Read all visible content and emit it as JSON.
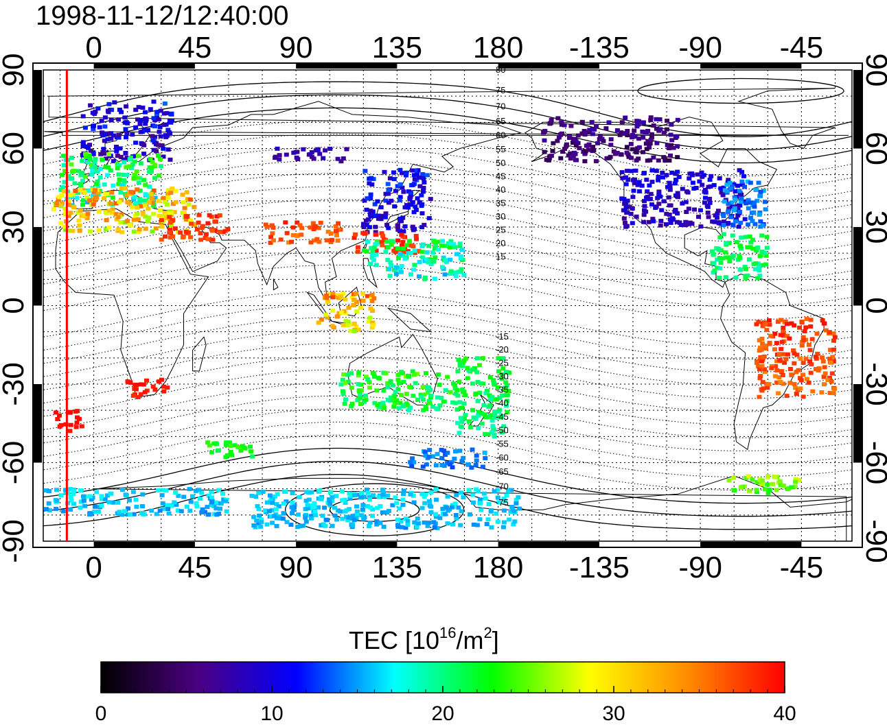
{
  "title": "1998-11-12/12:40:00",
  "map": {
    "lon_range": [
      -22.5,
      337.5
    ],
    "lat_range": [
      -90,
      90
    ],
    "lon_ticks": [
      0,
      45,
      90,
      135,
      180,
      225,
      270,
      315
    ],
    "lon_tick_labels": [
      "0",
      "45",
      "90",
      "135",
      "180",
      "-135",
      "-90",
      "-45"
    ],
    "lat_ticks": [
      90,
      60,
      30,
      0,
      -30,
      -60,
      -90
    ],
    "lat_tick_labels": [
      "90",
      "60",
      "30",
      "0",
      "-30",
      "-60",
      "-90"
    ],
    "grid_lon_step": 15,
    "grid_lat_step": 10,
    "marker_line_lon": -12,
    "marker_line_color": "#ff0000",
    "mlat_labels_north": [
      "80",
      "75",
      "70",
      "65",
      "60",
      "55",
      "50",
      "45",
      "40",
      "35",
      "30",
      "25",
      "20",
      "15"
    ],
    "mlat_labels_south": [
      "-15",
      "-20",
      "-25",
      "-30",
      "-35",
      "-40",
      "-45",
      "-50",
      "-55",
      "-60",
      "-65",
      "-70",
      "-75"
    ]
  },
  "colorbar": {
    "label": "TEC  [10",
    "label_exp": "16",
    "label_mid": "/m",
    "label_sq": "2",
    "label_end": "]",
    "min": 0,
    "max": 40,
    "ticks": [
      0,
      10,
      20,
      30,
      40
    ],
    "tick_labels": [
      "0",
      "10",
      "20",
      "30",
      "40"
    ],
    "stops": [
      "#000000",
      "#4b0082",
      "#0000ff",
      "#00ffff",
      "#00ff00",
      "#ffff00",
      "#ff8c00",
      "#ff0000"
    ]
  },
  "chart_data": {
    "type": "scatter",
    "x_name": "longitude",
    "y_name": "latitude",
    "value_name": "TEC",
    "regions": [
      {
        "lon": [
          -5,
          35
        ],
        "lat": [
          55,
          78
        ],
        "tec": [
          5,
          14
        ]
      },
      {
        "lon": [
          -15,
          30
        ],
        "lat": [
          38,
          58
        ],
        "tec": [
          15,
          26
        ]
      },
      {
        "lon": [
          -18,
          45
        ],
        "lat": [
          28,
          45
        ],
        "tec": [
          24,
          38
        ]
      },
      {
        "lon": [
          30,
          60
        ],
        "lat": [
          25,
          35
        ],
        "tec": [
          36,
          40
        ]
      },
      {
        "lon": [
          75,
          110
        ],
        "lat": [
          24,
          32
        ],
        "tec": [
          34,
          40
        ]
      },
      {
        "lon": [
          80,
          115
        ],
        "lat": [
          55,
          60
        ],
        "tec": [
          6,
          9
        ]
      },
      {
        "lon": [
          120,
          150
        ],
        "lat": [
          28,
          52
        ],
        "tec": [
          6,
          14
        ]
      },
      {
        "lon": [
          115,
          145
        ],
        "lat": [
          20,
          28
        ],
        "tec": [
          36,
          40
        ]
      },
      {
        "lon": [
          120,
          165
        ],
        "lat": [
          10,
          25
        ],
        "tec": [
          14,
          24
        ]
      },
      {
        "lon": [
          100,
          125
        ],
        "lat": [
          -10,
          5
        ],
        "tec": [
          25,
          38
        ]
      },
      {
        "lon": [
          110,
          160
        ],
        "lat": [
          -40,
          -25
        ],
        "tec": [
          18,
          26
        ]
      },
      {
        "lon": [
          160,
          185
        ],
        "lat": [
          -50,
          -20
        ],
        "tec": [
          18,
          24
        ]
      },
      {
        "lon": [
          140,
          175
        ],
        "lat": [
          -62,
          -55
        ],
        "tec": [
          12,
          16
        ]
      },
      {
        "lon": [
          200,
          260
        ],
        "lat": [
          55,
          72
        ],
        "tec": [
          3,
          8
        ]
      },
      {
        "lon": [
          235,
          290
        ],
        "lat": [
          30,
          52
        ],
        "tec": [
          6,
          12
        ]
      },
      {
        "lon": [
          280,
          300
        ],
        "lat": [
          30,
          48
        ],
        "tec": [
          12,
          16
        ]
      },
      {
        "lon": [
          275,
          300
        ],
        "lat": [
          10,
          28
        ],
        "tec": [
          18,
          24
        ]
      },
      {
        "lon": [
          295,
          330
        ],
        "lat": [
          -35,
          -5
        ],
        "tec": [
          34,
          40
        ]
      },
      {
        "lon": [
          282,
          315
        ],
        "lat": [
          -72,
          -65
        ],
        "tec": [
          22,
          28
        ]
      },
      {
        "lon": [
          -22,
          60
        ],
        "lat": [
          -80,
          -70
        ],
        "tec": [
          14,
          18
        ]
      },
      {
        "lon": [
          70,
          190
        ],
        "lat": [
          -85,
          -70
        ],
        "tec": [
          14,
          18
        ]
      },
      {
        "lon": [
          15,
          35
        ],
        "lat": [
          -35,
          -28
        ],
        "tec": [
          38,
          40
        ]
      },
      {
        "lon": [
          -18,
          -5
        ],
        "lat": [
          -48,
          -40
        ],
        "tec": [
          39,
          40
        ]
      },
      {
        "lon": [
          50,
          75
        ],
        "lat": [
          -58,
          -52
        ],
        "tec": [
          20,
          25
        ]
      }
    ]
  }
}
